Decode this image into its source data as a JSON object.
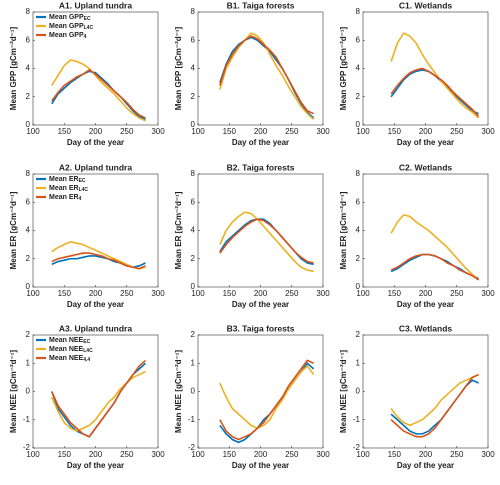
{
  "chart_data": [
    {
      "type": "line",
      "title": "A1. Upland tundra",
      "xlabel": "Day of the year",
      "ylabel": "Mean GPP [gCm⁻²d⁻¹]",
      "xlim": [
        100,
        300
      ],
      "xticks": [
        100,
        150,
        200,
        250,
        300
      ],
      "ylim": [
        0,
        8
      ],
      "yticks": [
        0,
        2,
        4,
        6,
        8
      ],
      "legend": "upper left",
      "x": [
        130,
        140,
        150,
        160,
        170,
        180,
        190,
        200,
        210,
        220,
        230,
        240,
        250,
        260,
        270,
        280
      ],
      "series": [
        {
          "name": "Mean GPP",
          "subscript": "EC",
          "color": "#0072bd",
          "values": [
            1.5,
            2.2,
            2.6,
            3.0,
            3.3,
            3.6,
            3.8,
            3.7,
            3.3,
            2.9,
            2.4,
            2.0,
            1.5,
            1.0,
            0.6,
            0.4
          ]
        },
        {
          "name": "Mean GPP",
          "subscript": "L4C",
          "color": "#edb120",
          "values": [
            2.8,
            3.5,
            4.2,
            4.6,
            4.5,
            4.3,
            4.0,
            3.5,
            3.0,
            2.6,
            2.2,
            1.7,
            1.2,
            0.8,
            0.5,
            0.3
          ]
        },
        {
          "name": "Mean GPP",
          "subscript": "4",
          "color": "#d95319",
          "values": [
            1.7,
            2.3,
            2.8,
            3.1,
            3.4,
            3.6,
            3.9,
            3.6,
            3.2,
            2.8,
            2.4,
            2.0,
            1.6,
            1.1,
            0.7,
            0.5
          ]
        }
      ]
    },
    {
      "type": "line",
      "title": "B1. Taiga forests",
      "xlabel": "Day of the year",
      "ylabel": "Mean GPP [gCm⁻²d⁻¹]",
      "xlim": [
        100,
        300
      ],
      "xticks": [
        100,
        150,
        200,
        250,
        300
      ],
      "ylim": [
        0,
        8
      ],
      "yticks": [
        0,
        2,
        4,
        6,
        8
      ],
      "x": [
        135,
        145,
        155,
        165,
        175,
        185,
        195,
        205,
        215,
        225,
        235,
        245,
        255,
        265,
        275,
        285
      ],
      "series": [
        {
          "color": "#0072bd",
          "values": [
            3.0,
            4.3,
            5.2,
            5.7,
            6.0,
            6.2,
            6.0,
            5.6,
            5.2,
            4.6,
            4.0,
            3.2,
            2.3,
            1.5,
            0.9,
            0.5
          ]
        },
        {
          "color": "#edb120",
          "values": [
            2.5,
            4.0,
            4.8,
            5.5,
            6.0,
            6.5,
            6.3,
            5.8,
            5.0,
            4.2,
            3.5,
            2.7,
            2.0,
            1.3,
            0.8,
            0.4
          ]
        },
        {
          "color": "#d95319",
          "values": [
            2.8,
            4.2,
            5.0,
            5.6,
            6.0,
            6.3,
            6.1,
            5.7,
            5.3,
            4.8,
            4.0,
            3.2,
            2.4,
            1.6,
            1.0,
            0.8
          ]
        }
      ]
    },
    {
      "type": "line",
      "title": "C1. Wetlands",
      "xlabel": "Day of the year",
      "ylabel": "Mean GPP [gCm⁻²d⁻¹]",
      "xlim": [
        100,
        300
      ],
      "xticks": [
        100,
        150,
        200,
        250,
        300
      ],
      "ylim": [
        0,
        8
      ],
      "yticks": [
        0,
        2,
        4,
        6,
        8
      ],
      "x": [
        145,
        155,
        165,
        175,
        185,
        195,
        205,
        215,
        225,
        235,
        245,
        255,
        265,
        275,
        285
      ],
      "series": [
        {
          "color": "#0072bd",
          "values": [
            2.0,
            2.6,
            3.2,
            3.6,
            3.8,
            3.9,
            3.8,
            3.5,
            3.1,
            2.7,
            2.2,
            1.8,
            1.4,
            1.0,
            0.8
          ]
        },
        {
          "color": "#edb120",
          "values": [
            4.5,
            5.8,
            6.5,
            6.3,
            5.8,
            5.0,
            4.3,
            3.7,
            3.1,
            2.6,
            2.1,
            1.6,
            1.2,
            0.9,
            0.5
          ]
        },
        {
          "color": "#d95319",
          "values": [
            2.2,
            2.8,
            3.3,
            3.7,
            3.9,
            4.0,
            3.8,
            3.5,
            3.2,
            2.8,
            2.3,
            1.9,
            1.5,
            1.1,
            0.6
          ]
        }
      ]
    },
    {
      "type": "line",
      "title": "A2. Upland tundra",
      "xlabel": "Day of the year",
      "ylabel": "Mean ER [gCm⁻²d⁻¹]",
      "xlim": [
        100,
        300
      ],
      "xticks": [
        100,
        150,
        200,
        250,
        300
      ],
      "ylim": [
        0,
        8
      ],
      "yticks": [
        0,
        2,
        4,
        6,
        8
      ],
      "legend": "upper left",
      "x": [
        130,
        140,
        150,
        160,
        170,
        180,
        190,
        200,
        210,
        220,
        230,
        240,
        250,
        260,
        270,
        280
      ],
      "series": [
        {
          "name": "Mean ER",
          "subscript": "EC",
          "color": "#0072bd",
          "values": [
            1.6,
            1.8,
            1.9,
            2.0,
            2.0,
            2.1,
            2.2,
            2.2,
            2.1,
            2.0,
            1.8,
            1.7,
            1.5,
            1.4,
            1.5,
            1.7
          ]
        },
        {
          "name": "Mean ER",
          "subscript": "L4C",
          "color": "#edb120",
          "values": [
            2.5,
            2.8,
            3.0,
            3.2,
            3.1,
            3.0,
            2.8,
            2.6,
            2.4,
            2.2,
            2.0,
            1.8,
            1.6,
            1.4,
            1.3,
            1.4
          ]
        },
        {
          "name": "Mean ER",
          "subscript": "4",
          "color": "#d95319",
          "values": [
            1.8,
            2.0,
            2.1,
            2.2,
            2.3,
            2.4,
            2.4,
            2.3,
            2.2,
            2.0,
            1.9,
            1.7,
            1.5,
            1.4,
            1.3,
            1.5
          ]
        }
      ]
    },
    {
      "type": "line",
      "title": "B2. Taiga forests",
      "xlabel": "Day of the year",
      "ylabel": "Mean ER [gCm⁻²d⁻¹]",
      "xlim": [
        100,
        300
      ],
      "xticks": [
        100,
        150,
        200,
        250,
        300
      ],
      "ylim": [
        0,
        8
      ],
      "yticks": [
        0,
        2,
        4,
        6,
        8
      ],
      "x": [
        135,
        145,
        155,
        165,
        175,
        185,
        195,
        205,
        215,
        225,
        235,
        245,
        255,
        265,
        275,
        285
      ],
      "series": [
        {
          "color": "#0072bd",
          "values": [
            2.5,
            3.2,
            3.6,
            4.0,
            4.4,
            4.7,
            4.8,
            4.8,
            4.5,
            4.0,
            3.5,
            3.0,
            2.5,
            2.0,
            1.7,
            1.6
          ]
        },
        {
          "color": "#edb120",
          "values": [
            3.0,
            4.0,
            4.6,
            5.0,
            5.3,
            5.2,
            4.8,
            4.3,
            3.8,
            3.3,
            2.8,
            2.3,
            1.8,
            1.4,
            1.2,
            1.1
          ]
        },
        {
          "color": "#d95319",
          "values": [
            2.4,
            3.0,
            3.5,
            3.9,
            4.3,
            4.6,
            4.8,
            4.7,
            4.4,
            4.0,
            3.5,
            3.0,
            2.5,
            2.1,
            1.8,
            1.7
          ]
        }
      ]
    },
    {
      "type": "line",
      "title": "C2. Wetlands",
      "xlabel": "Day of the year",
      "ylabel": "Mean ER [gCm⁻²d⁻¹]",
      "xlim": [
        100,
        300
      ],
      "xticks": [
        100,
        150,
        200,
        250,
        300
      ],
      "ylim": [
        0,
        8
      ],
      "yticks": [
        0,
        2,
        4,
        6,
        8
      ],
      "x": [
        145,
        155,
        165,
        175,
        185,
        195,
        205,
        215,
        225,
        235,
        245,
        255,
        265,
        275,
        285
      ],
      "series": [
        {
          "color": "#0072bd",
          "values": [
            1.1,
            1.3,
            1.6,
            1.9,
            2.1,
            2.3,
            2.3,
            2.2,
            2.0,
            1.8,
            1.5,
            1.3,
            1.0,
            0.8,
            0.6
          ]
        },
        {
          "color": "#edb120",
          "values": [
            3.8,
            4.6,
            5.1,
            5.0,
            4.6,
            4.3,
            4.0,
            3.6,
            3.2,
            2.8,
            2.3,
            1.8,
            1.3,
            0.9,
            0.5
          ]
        },
        {
          "color": "#d95319",
          "values": [
            1.2,
            1.4,
            1.7,
            2.0,
            2.2,
            2.3,
            2.3,
            2.2,
            2.0,
            1.7,
            1.5,
            1.2,
            1.0,
            0.8,
            0.5
          ]
        }
      ]
    },
    {
      "type": "line",
      "title": "A3. Upland tundra",
      "xlabel": "Day of the year",
      "ylabel": "Mean NEE [gCm⁻²d⁻¹]",
      "xlim": [
        100,
        300
      ],
      "xticks": [
        100,
        150,
        200,
        250,
        300
      ],
      "ylim": [
        -2,
        2
      ],
      "yticks": [
        -2,
        -1,
        0,
        1,
        2
      ],
      "legend": "upper left",
      "x": [
        130,
        140,
        150,
        160,
        170,
        180,
        190,
        200,
        210,
        220,
        230,
        240,
        250,
        260,
        270,
        280
      ],
      "series": [
        {
          "name": "Mean NEE",
          "subscript": "EC",
          "color": "#0072bd",
          "values": [
            0.0,
            -0.6,
            -0.9,
            -1.2,
            -1.4,
            -1.5,
            -1.6,
            -1.3,
            -1.0,
            -0.7,
            -0.4,
            0.0,
            0.3,
            0.6,
            0.8,
            1.0
          ]
        },
        {
          "name": "Mean NEE",
          "subscript": "L4C",
          "color": "#edb120",
          "values": [
            -0.2,
            -0.7,
            -1.1,
            -1.3,
            -1.4,
            -1.3,
            -1.2,
            -1.0,
            -0.7,
            -0.4,
            -0.2,
            0.1,
            0.3,
            0.5,
            0.6,
            0.7
          ]
        },
        {
          "name": "Mean NEE",
          "subscript": "4,4",
          "color": "#d95319",
          "values": [
            0.0,
            -0.5,
            -0.8,
            -1.1,
            -1.3,
            -1.5,
            -1.6,
            -1.3,
            -1.0,
            -0.7,
            -0.4,
            0.0,
            0.3,
            0.6,
            0.9,
            1.1
          ]
        }
      ]
    },
    {
      "type": "line",
      "title": "B3. Taiga forests",
      "xlabel": "Day of the year",
      "ylabel": "Mean NEE [gCm⁻²d⁻¹]",
      "xlim": [
        100,
        300
      ],
      "xticks": [
        100,
        150,
        200,
        250,
        300
      ],
      "ylim": [
        -2,
        2
      ],
      "yticks": [
        -2,
        -1,
        0,
        1,
        2
      ],
      "x": [
        135,
        145,
        155,
        165,
        175,
        185,
        195,
        205,
        215,
        225,
        235,
        245,
        255,
        265,
        275,
        285
      ],
      "series": [
        {
          "color": "#0072bd",
          "values": [
            -1.2,
            -1.5,
            -1.7,
            -1.8,
            -1.7,
            -1.5,
            -1.3,
            -1.0,
            -0.8,
            -0.5,
            -0.2,
            0.1,
            0.4,
            0.7,
            1.0,
            0.8
          ]
        },
        {
          "color": "#edb120",
          "values": [
            0.3,
            -0.2,
            -0.6,
            -0.8,
            -1.0,
            -1.2,
            -1.3,
            -1.2,
            -1.0,
            -0.6,
            -0.3,
            0.1,
            0.4,
            0.7,
            0.9,
            0.6
          ]
        },
        {
          "color": "#d95319",
          "values": [
            -1.0,
            -1.4,
            -1.6,
            -1.7,
            -1.6,
            -1.5,
            -1.3,
            -1.1,
            -0.8,
            -0.5,
            -0.2,
            0.2,
            0.5,
            0.8,
            1.1,
            1.0
          ]
        }
      ]
    },
    {
      "type": "line",
      "title": "C3. Wetlands",
      "xlabel": "Day of the year",
      "ylabel": "Mean NEE [gCm⁻²d⁻¹]",
      "xlim": [
        100,
        300
      ],
      "xticks": [
        100,
        150,
        200,
        250,
        300
      ],
      "ylim": [
        -2,
        2
      ],
      "yticks": [
        -2,
        -1,
        0,
        1,
        2
      ],
      "x": [
        145,
        155,
        165,
        175,
        185,
        195,
        205,
        215,
        225,
        235,
        245,
        255,
        265,
        275,
        285
      ],
      "series": [
        {
          "color": "#0072bd",
          "values": [
            -0.8,
            -1.0,
            -1.2,
            -1.4,
            -1.5,
            -1.5,
            -1.4,
            -1.2,
            -1.0,
            -0.7,
            -0.4,
            -0.1,
            0.2,
            0.4,
            0.3
          ]
        },
        {
          "color": "#edb120",
          "values": [
            -0.6,
            -0.9,
            -1.1,
            -1.2,
            -1.1,
            -1.0,
            -0.8,
            -0.6,
            -0.3,
            -0.1,
            0.1,
            0.3,
            0.4,
            0.5,
            0.6
          ]
        },
        {
          "color": "#d95319",
          "values": [
            -1.0,
            -1.2,
            -1.4,
            -1.5,
            -1.6,
            -1.6,
            -1.5,
            -1.3,
            -1.0,
            -0.7,
            -0.4,
            -0.1,
            0.2,
            0.5,
            0.6
          ]
        }
      ]
    }
  ]
}
